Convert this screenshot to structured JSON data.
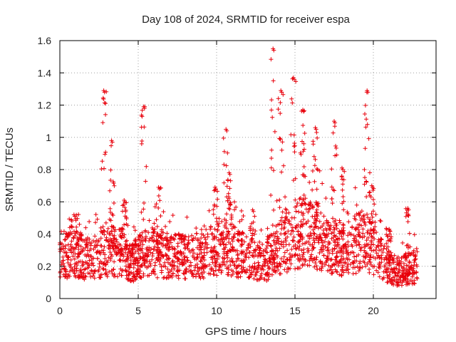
{
  "chart_data": {
    "type": "scatter",
    "title": "Day 108 of 2024, SRMTID for receiver espa",
    "xlabel": "GPS time / hours",
    "ylabel": "SRMTID / TECUs",
    "xlim": [
      0,
      24
    ],
    "ylim": [
      0,
      1.6
    ],
    "x_ticks": [
      0,
      5,
      10,
      15,
      20
    ],
    "x_tick_labels": [
      "0",
      "5",
      "10",
      "15",
      "20"
    ],
    "y_ticks": [
      0,
      0.2,
      0.4,
      0.6,
      0.8,
      1,
      1.2,
      1.4,
      1.6
    ],
    "y_tick_labels": [
      "0",
      "0.2",
      "0.4",
      "0.6",
      "0.8",
      "1",
      "1.2",
      "1.4",
      "1.6"
    ],
    "grid": true,
    "marker": "plus",
    "series_color": "#e8000b",
    "data_range_hours": [
      0,
      22.8
    ],
    "baseline_profile": [
      [
        0.0,
        0.28
      ],
      [
        1.0,
        0.28
      ],
      [
        2.0,
        0.25
      ],
      [
        3.0,
        0.3
      ],
      [
        4.0,
        0.3
      ],
      [
        4.5,
        0.22
      ],
      [
        5.5,
        0.3
      ],
      [
        7.0,
        0.27
      ],
      [
        9.0,
        0.27
      ],
      [
        10.5,
        0.33
      ],
      [
        12.0,
        0.26
      ],
      [
        13.0,
        0.22
      ],
      [
        14.0,
        0.33
      ],
      [
        15.5,
        0.42
      ],
      [
        16.5,
        0.4
      ],
      [
        18.0,
        0.3
      ],
      [
        19.5,
        0.38
      ],
      [
        20.5,
        0.25
      ],
      [
        21.5,
        0.17
      ],
      [
        22.8,
        0.21
      ]
    ],
    "peaks": [
      {
        "x": 0.9,
        "y": 0.52
      },
      {
        "x": 2.8,
        "y": 1.29
      },
      {
        "x": 3.3,
        "y": 0.98
      },
      {
        "x": 4.1,
        "y": 0.61
      },
      {
        "x": 5.35,
        "y": 1.19
      },
      {
        "x": 6.3,
        "y": 0.69
      },
      {
        "x": 9.9,
        "y": 0.69
      },
      {
        "x": 10.6,
        "y": 1.05
      },
      {
        "x": 10.8,
        "y": 0.78
      },
      {
        "x": 12.3,
        "y": 0.55
      },
      {
        "x": 13.6,
        "y": 1.55
      },
      {
        "x": 14.1,
        "y": 1.29
      },
      {
        "x": 14.9,
        "y": 1.37
      },
      {
        "x": 15.5,
        "y": 1.17
      },
      {
        "x": 16.3,
        "y": 1.06
      },
      {
        "x": 17.5,
        "y": 1.1
      },
      {
        "x": 18.0,
        "y": 0.81
      },
      {
        "x": 19.6,
        "y": 1.29
      },
      {
        "x": 19.9,
        "y": 0.7
      },
      {
        "x": 21.0,
        "y": 0.43
      },
      {
        "x": 22.2,
        "y": 0.56
      }
    ],
    "minimum_observed": 0.06,
    "maximum_observed": 1.55
  }
}
